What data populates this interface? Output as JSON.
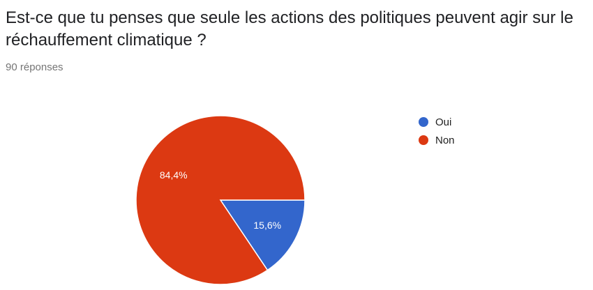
{
  "question": {
    "title": "Est-ce que tu penses que seule les actions des politiques peuvent agir sur le réchauffement climatique ?",
    "response_count": "90 réponses"
  },
  "chart_data": {
    "type": "pie",
    "categories": [
      "Oui",
      "Non"
    ],
    "values": [
      15.6,
      84.4
    ],
    "labels": [
      "15,6%",
      "84,4%"
    ],
    "colors": [
      "#3366cc",
      "#dc3912"
    ],
    "legend_position": "right"
  }
}
